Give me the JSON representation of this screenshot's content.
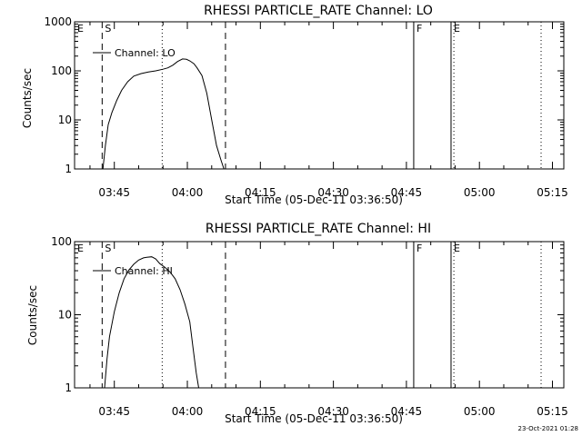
{
  "footer_timestamp": "23-Oct-2021 01:28",
  "chart_data": [
    {
      "type": "line",
      "title": "RHESSI PARTICLE_RATE Channel: LO",
      "xlabel": "Start Time (05-Dec-11 03:36:50)",
      "ylabel": "Counts/sec",
      "y_scale": "log",
      "ylim": [
        1,
        1000
      ],
      "xlim": [
        "03:36:50",
        "05:17:20"
      ],
      "y_ticks": [
        "1",
        "10",
        "100",
        "1000"
      ],
      "x_ticks": [
        "03:45",
        "04:00",
        "04:15",
        "04:30",
        "04:45",
        "05:00",
        "05:15"
      ],
      "legend": "Channel: LO",
      "legend_position": "top-left",
      "series": [
        {
          "name": "Channel: LO",
          "x": [
            "03:42:40",
            "03:43:10",
            "03:43:45",
            "03:44:30",
            "03:45:30",
            "03:46:30",
            "03:47:45",
            "03:49:00",
            "03:50:30",
            "03:52:00",
            "03:53:30",
            "03:55:00",
            "03:56:00",
            "03:57:00",
            "03:58:00",
            "03:59:00",
            "03:59:50",
            "04:00:30",
            "04:01:20",
            "04:02:00",
            "04:03:00",
            "04:04:00",
            "04:05:00",
            "04:06:00",
            "04:06:50",
            "04:07:30"
          ],
          "y": [
            1,
            3,
            8,
            14,
            25,
            40,
            60,
            78,
            88,
            95,
            100,
            108,
            115,
            130,
            155,
            175,
            172,
            160,
            140,
            115,
            80,
            35,
            10,
            3,
            1.6,
            1
          ]
        }
      ],
      "markers": [
        {
          "label": "E",
          "time": "03:36:50",
          "style": "solid"
        },
        {
          "label": "S",
          "time": "03:42:30",
          "style": "dashed"
        },
        {
          "label": "",
          "time": "03:54:50",
          "style": "dotted"
        },
        {
          "label": "",
          "time": "04:07:50",
          "style": "dashed"
        },
        {
          "label": "F",
          "time": "04:46:30",
          "style": "solid"
        },
        {
          "label": "E",
          "time": "04:54:10",
          "style": "solid"
        },
        {
          "label": "",
          "time": "04:54:45",
          "style": "dotted"
        },
        {
          "label": "",
          "time": "05:12:40",
          "style": "dotted"
        }
      ]
    },
    {
      "type": "line",
      "title": "RHESSI PARTICLE_RATE Channel: HI",
      "xlabel": "Start Time (05-Dec-11 03:36:50)",
      "ylabel": "Counts/sec",
      "y_scale": "log",
      "ylim": [
        1,
        100
      ],
      "xlim": [
        "03:36:50",
        "05:17:20"
      ],
      "y_ticks": [
        "1",
        "10",
        "100"
      ],
      "x_ticks": [
        "03:45",
        "04:00",
        "04:15",
        "04:30",
        "04:45",
        "05:00",
        "05:15"
      ],
      "legend": "Channel: HI",
      "legend_position": "top-left",
      "series": [
        {
          "name": "Channel: HI",
          "x": [
            "03:43:00",
            "03:43:30",
            "03:44:00",
            "03:45:00",
            "03:46:00",
            "03:47:00",
            "03:48:00",
            "03:49:00",
            "03:50:00",
            "03:51:00",
            "03:51:40",
            "03:52:40",
            "03:53:30",
            "03:54:20",
            "03:55:30",
            "03:56:30",
            "03:57:30",
            "03:58:30",
            "03:59:30",
            "04:00:30",
            "04:01:10",
            "04:01:50",
            "04:02:20"
          ],
          "y": [
            1,
            2.5,
            5,
            11,
            20,
            31,
            41,
            49,
            56,
            60,
            61,
            62,
            58,
            50,
            44,
            38,
            31,
            22,
            14,
            8,
            3.5,
            1.6,
            1
          ]
        }
      ],
      "markers": [
        {
          "label": "E",
          "time": "03:36:50",
          "style": "solid"
        },
        {
          "label": "S",
          "time": "03:42:30",
          "style": "dashed"
        },
        {
          "label": "",
          "time": "03:54:50",
          "style": "dotted"
        },
        {
          "label": "",
          "time": "04:07:50",
          "style": "dashed"
        },
        {
          "label": "F",
          "time": "04:46:30",
          "style": "solid"
        },
        {
          "label": "E",
          "time": "04:54:10",
          "style": "solid"
        },
        {
          "label": "",
          "time": "04:54:45",
          "style": "dotted"
        },
        {
          "label": "",
          "time": "05:12:40",
          "style": "dotted"
        }
      ]
    }
  ]
}
